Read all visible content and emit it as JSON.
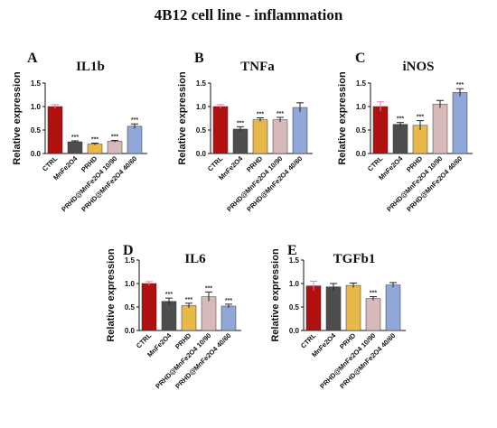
{
  "figure_title": "4B12 cell line - inflammation",
  "colors": {
    "CTRL": "#b01010",
    "MnFe2O4": "#4d4d4d",
    "PRHD": "#e8b84a",
    "PRHD@MnFe2O4 10/90": "#d8b9ba",
    "PRHD@MnFe2O4 40/60": "#90a8d8",
    "ctrl_errorbar": "#f07aa8",
    "prhd_errorbar": "#9a3ab8"
  },
  "chart_data": [
    {
      "panel": "A",
      "title": "IL1b",
      "type": "bar",
      "ylabel": "Relative expression",
      "ylim": [
        0,
        1.5
      ],
      "yticks": [
        "0.0",
        "0.5",
        "1.0",
        "1.5"
      ],
      "categories": [
        "CTRL",
        "MnFe2O4",
        "PRHD",
        "PRHD@MnFe2O4 10/90",
        "PRHD@MnFe2O4 40/60"
      ],
      "values": [
        1.0,
        0.25,
        0.2,
        0.26,
        0.58
      ],
      "errors": [
        0.04,
        0.02,
        0.02,
        0.02,
        0.05
      ],
      "significance": [
        "",
        "***",
        "***",
        "***",
        "***"
      ]
    },
    {
      "panel": "B",
      "title": "TNFa",
      "type": "bar",
      "ylabel": "Relative expression",
      "ylim": [
        0,
        1.5
      ],
      "yticks": [
        "0.0",
        "0.5",
        "1.0",
        "1.5"
      ],
      "categories": [
        "CTRL",
        "MnFe2O4",
        "PRHD",
        "PRHD@MnFe2O4 10/90",
        "PRHD@MnFe2O4 40/60"
      ],
      "values": [
        1.0,
        0.52,
        0.72,
        0.72,
        0.98
      ],
      "errors": [
        0.04,
        0.05,
        0.04,
        0.05,
        0.1
      ],
      "significance": [
        "",
        "***",
        "***",
        "***",
        ""
      ]
    },
    {
      "panel": "C",
      "title": "iNOS",
      "type": "bar",
      "ylabel": "Relative expression",
      "ylim": [
        0,
        1.5
      ],
      "yticks": [
        "0.0",
        "0.5",
        "1.0",
        "1.5"
      ],
      "categories": [
        "CTRL",
        "MnFe2O4",
        "PRHD",
        "PRHD@MnFe2O4 10/90",
        "PRHD@MnFe2O4 40/60"
      ],
      "values": [
        1.0,
        0.62,
        0.6,
        1.05,
        1.3
      ],
      "errors": [
        0.1,
        0.04,
        0.1,
        0.08,
        0.08
      ],
      "significance": [
        "",
        "***",
        "***",
        "",
        "***"
      ]
    },
    {
      "panel": "D",
      "title": "IL6",
      "type": "bar",
      "ylabel": "Relative expression",
      "ylim": [
        0,
        1.5
      ],
      "yticks": [
        "0.0",
        "0.5",
        "1.0",
        "1.5"
      ],
      "categories": [
        "CTRL",
        "MnFe2O4",
        "PRHD",
        "PRHD@MnFe2O4 10/90",
        "PRHD@MnFe2O4 40/60"
      ],
      "values": [
        1.0,
        0.62,
        0.53,
        0.72,
        0.52
      ],
      "errors": [
        0.04,
        0.07,
        0.05,
        0.1,
        0.04
      ],
      "significance": [
        "",
        "***",
        "***",
        "***",
        "***"
      ]
    },
    {
      "panel": "E",
      "title": "TGFb1",
      "type": "bar",
      "ylabel": "Relative expression",
      "ylim": [
        0,
        1.5
      ],
      "yticks": [
        "0.0",
        "0.5",
        "1.0",
        "1.5"
      ],
      "categories": [
        "CTRL",
        "MnFe2O4",
        "PRHD",
        "PRHD@MnFe2O4 10/90",
        "PRHD@MnFe2O4 40/60"
      ],
      "values": [
        0.95,
        0.93,
        0.96,
        0.68,
        0.97
      ],
      "errors": [
        0.1,
        0.07,
        0.05,
        0.04,
        0.05
      ],
      "significance": [
        "",
        "",
        "",
        "***",
        ""
      ]
    }
  ]
}
